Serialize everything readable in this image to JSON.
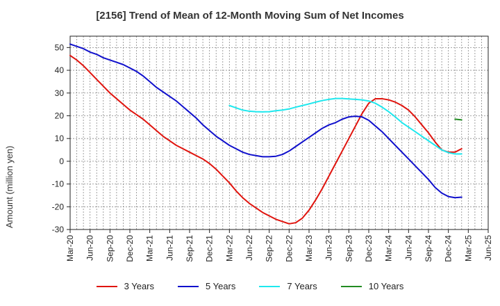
{
  "chart_data": {
    "type": "line",
    "title": "[2156]  Trend of Mean of 12-Month Moving Sum of Net Incomes",
    "ylabel": "Amount (million yen)",
    "xlabel": "",
    "ylim": [
      -30,
      55
    ],
    "y_ticks": [
      -30,
      -20,
      -10,
      0,
      10,
      20,
      30,
      40,
      50
    ],
    "x_ticks": [
      "Mar-20",
      "Jun-20",
      "Sep-20",
      "Dec-20",
      "Mar-21",
      "Jun-21",
      "Sep-21",
      "Dec-21",
      "Mar-22",
      "Jun-22",
      "Sep-22",
      "Dec-22",
      "Mar-23",
      "Jun-23",
      "Sep-23",
      "Dec-23",
      "Mar-24",
      "Jun-24",
      "Sep-24",
      "Dec-24",
      "Mar-25",
      "Jun-25"
    ],
    "x_range": [
      "Mar-20",
      "Jun-25"
    ],
    "grid": true,
    "legend_position": "bottom",
    "series": [
      {
        "name": "3 Years",
        "color": "#e0140e",
        "points": [
          [
            "Mar-20",
            46.5
          ],
          [
            "Apr-20",
            44.5
          ],
          [
            "May-20",
            42
          ],
          [
            "Jun-20",
            39
          ],
          [
            "Jul-20",
            36
          ],
          [
            "Aug-20",
            33
          ],
          [
            "Sep-20",
            30
          ],
          [
            "Oct-20",
            27.5
          ],
          [
            "Nov-20",
            25
          ],
          [
            "Dec-20",
            22.5
          ],
          [
            "Jan-21",
            20.5
          ],
          [
            "Feb-21",
            18.5
          ],
          [
            "Mar-21",
            16
          ],
          [
            "Apr-21",
            13.5
          ],
          [
            "May-21",
            11
          ],
          [
            "Jun-21",
            9
          ],
          [
            "Jul-21",
            7
          ],
          [
            "Aug-21",
            5.5
          ],
          [
            "Sep-21",
            4
          ],
          [
            "Oct-21",
            2.5
          ],
          [
            "Nov-21",
            1
          ],
          [
            "Dec-21",
            -1
          ],
          [
            "Jan-22",
            -3.5
          ],
          [
            "Feb-22",
            -6.5
          ],
          [
            "Mar-22",
            -9.5
          ],
          [
            "Apr-22",
            -13
          ],
          [
            "May-22",
            -16
          ],
          [
            "Jun-22",
            -18.5
          ],
          [
            "Jul-22",
            -20.5
          ],
          [
            "Aug-22",
            -22.5
          ],
          [
            "Sep-22",
            -24
          ],
          [
            "Oct-22",
            -25.5
          ],
          [
            "Nov-22",
            -26.5
          ],
          [
            "Dec-22",
            -27.5
          ],
          [
            "Jan-23",
            -27
          ],
          [
            "Feb-23",
            -25
          ],
          [
            "Mar-23",
            -21.5
          ],
          [
            "Apr-23",
            -17
          ],
          [
            "May-23",
            -12
          ],
          [
            "Jun-23",
            -6.5
          ],
          [
            "Jul-23",
            -1
          ],
          [
            "Aug-23",
            4.5
          ],
          [
            "Sep-23",
            10
          ],
          [
            "Oct-23",
            15.5
          ],
          [
            "Nov-23",
            21
          ],
          [
            "Dec-23",
            25.5
          ],
          [
            "Jan-24",
            27.5
          ],
          [
            "Feb-24",
            27.5
          ],
          [
            "Mar-24",
            27
          ],
          [
            "Apr-24",
            26
          ],
          [
            "May-24",
            24.5
          ],
          [
            "Jun-24",
            22.5
          ],
          [
            "Jul-24",
            19.5
          ],
          [
            "Aug-24",
            16
          ],
          [
            "Sep-24",
            12.5
          ],
          [
            "Oct-24",
            8.5
          ],
          [
            "Nov-24",
            5
          ],
          [
            "Dec-24",
            4
          ],
          [
            "Jan-25",
            4
          ],
          [
            "Feb-25",
            5.5
          ]
        ]
      },
      {
        "name": "5 Years",
        "color": "#1010cc",
        "points": [
          [
            "Mar-20",
            51.5
          ],
          [
            "Apr-20",
            50.5
          ],
          [
            "May-20",
            49.5
          ],
          [
            "Jun-20",
            48
          ],
          [
            "Jul-20",
            47
          ],
          [
            "Aug-20",
            45.5
          ],
          [
            "Sep-20",
            44.5
          ],
          [
            "Oct-20",
            43.5
          ],
          [
            "Nov-20",
            42.5
          ],
          [
            "Dec-20",
            41
          ],
          [
            "Jan-21",
            39.5
          ],
          [
            "Feb-21",
            37.5
          ],
          [
            "Mar-21",
            35
          ],
          [
            "Apr-21",
            32.5
          ],
          [
            "May-21",
            30.5
          ],
          [
            "Jun-21",
            28.5
          ],
          [
            "Jul-21",
            26.5
          ],
          [
            "Aug-21",
            24
          ],
          [
            "Sep-21",
            21.5
          ],
          [
            "Oct-21",
            19
          ],
          [
            "Nov-21",
            16
          ],
          [
            "Dec-21",
            13.5
          ],
          [
            "Jan-22",
            11
          ],
          [
            "Feb-22",
            9
          ],
          [
            "Mar-22",
            7
          ],
          [
            "Apr-22",
            5.5
          ],
          [
            "May-22",
            4
          ],
          [
            "Jun-22",
            3
          ],
          [
            "Jul-22",
            2.5
          ],
          [
            "Aug-22",
            2
          ],
          [
            "Sep-22",
            2
          ],
          [
            "Oct-22",
            2.2
          ],
          [
            "Nov-22",
            3
          ],
          [
            "Dec-22",
            4.5
          ],
          [
            "Jan-23",
            6.5
          ],
          [
            "Feb-23",
            8.5
          ],
          [
            "Mar-23",
            10.5
          ],
          [
            "Apr-23",
            12.5
          ],
          [
            "May-23",
            14.5
          ],
          [
            "Jun-23",
            16
          ],
          [
            "Jul-23",
            17
          ],
          [
            "Aug-23",
            18.5
          ],
          [
            "Sep-23",
            19.5
          ],
          [
            "Oct-23",
            19.8
          ],
          [
            "Nov-23",
            19.5
          ],
          [
            "Dec-23",
            18
          ],
          [
            "Jan-24",
            15.5
          ],
          [
            "Feb-24",
            13
          ],
          [
            "Mar-24",
            10
          ],
          [
            "Apr-24",
            7
          ],
          [
            "May-24",
            4
          ],
          [
            "Jun-24",
            1
          ],
          [
            "Jul-24",
            -2
          ],
          [
            "Aug-24",
            -5
          ],
          [
            "Sep-24",
            -8
          ],
          [
            "Oct-24",
            -11.5
          ],
          [
            "Nov-24",
            -14
          ],
          [
            "Dec-24",
            -15.5
          ],
          [
            "Jan-25",
            -16
          ],
          [
            "Feb-25",
            -15.8
          ]
        ]
      },
      {
        "name": "7 Years",
        "color": "#1ee8ee",
        "points": [
          [
            "Mar-22",
            24.5
          ],
          [
            "Apr-22",
            23.5
          ],
          [
            "May-22",
            22.5
          ],
          [
            "Jun-22",
            22
          ],
          [
            "Jul-22",
            21.8
          ],
          [
            "Aug-22",
            21.7
          ],
          [
            "Sep-22",
            21.8
          ],
          [
            "Oct-22",
            22.2
          ],
          [
            "Nov-22",
            22.5
          ],
          [
            "Dec-22",
            23
          ],
          [
            "Jan-23",
            23.8
          ],
          [
            "Feb-23",
            24.5
          ],
          [
            "Mar-23",
            25.2
          ],
          [
            "Apr-23",
            26
          ],
          [
            "May-23",
            26.7
          ],
          [
            "Jun-23",
            27.2
          ],
          [
            "Jul-23",
            27.6
          ],
          [
            "Aug-23",
            27.6
          ],
          [
            "Sep-23",
            27.4
          ],
          [
            "Oct-23",
            27.2
          ],
          [
            "Nov-23",
            27
          ],
          [
            "Dec-23",
            26.5
          ],
          [
            "Jan-24",
            25.5
          ],
          [
            "Feb-24",
            23.8
          ],
          [
            "Mar-24",
            21.8
          ],
          [
            "Apr-24",
            19.5
          ],
          [
            "May-24",
            17
          ],
          [
            "Jun-24",
            15
          ],
          [
            "Jul-24",
            13
          ],
          [
            "Aug-24",
            11
          ],
          [
            "Sep-24",
            9
          ],
          [
            "Oct-24",
            7
          ],
          [
            "Nov-24",
            5
          ],
          [
            "Dec-24",
            3.8
          ],
          [
            "Jan-25",
            3.2
          ],
          [
            "Feb-25",
            3.2
          ]
        ]
      },
      {
        "name": "10 Years",
        "color": "#228b22",
        "points": [
          [
            "Jan-25",
            18.5
          ],
          [
            "Feb-25",
            18.2
          ]
        ]
      }
    ]
  }
}
